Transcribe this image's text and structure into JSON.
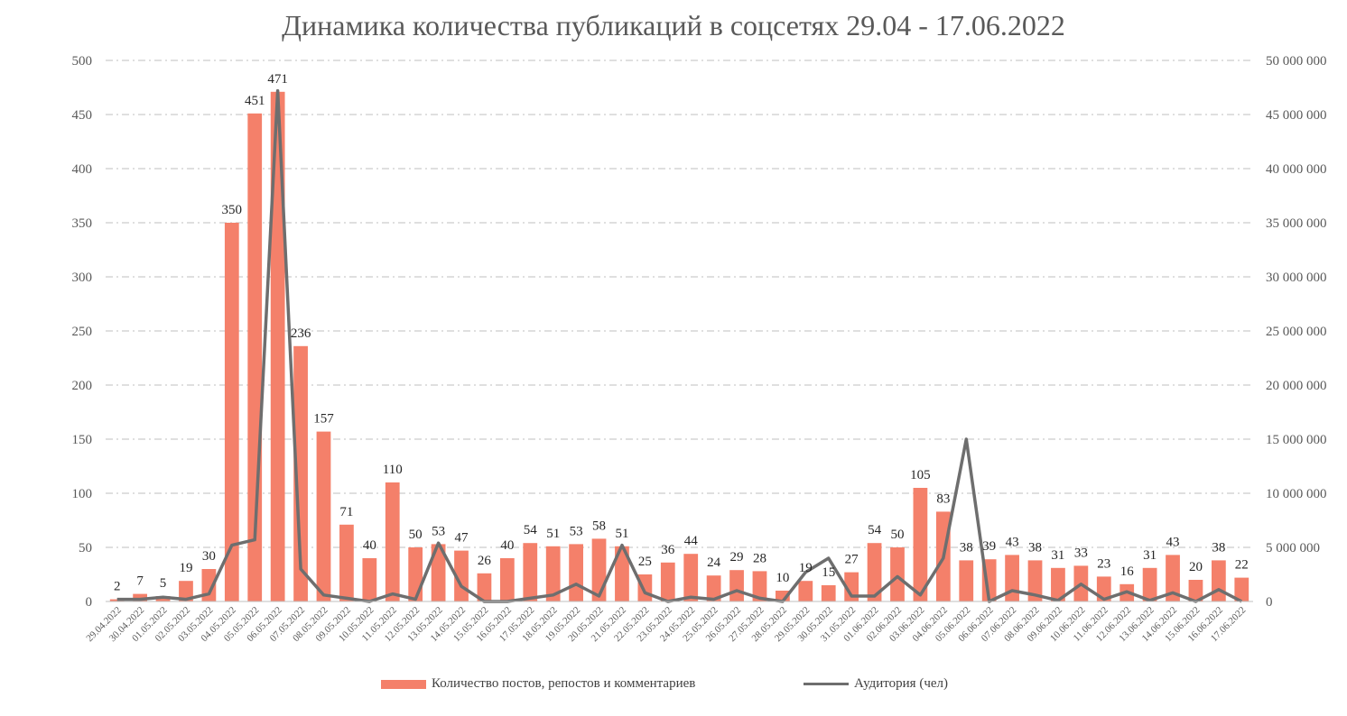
{
  "title": "Динамика количества публикаций в соцсетях 29.04 - 17.06.2022",
  "colors": {
    "bar": "#F4806A",
    "line": "#6E6E6E",
    "grid": "#BFBFBF",
    "text": "#595959"
  },
  "chart_data": {
    "type": "bar",
    "categories": [
      "29.04.2022",
      "30.04.2022",
      "01.05.2022",
      "02.05.2022",
      "03.05.2022",
      "04.05.2022",
      "05.05.2022",
      "06.05.2022",
      "07.05.2022",
      "08.05.2022",
      "09.05.2022",
      "10.05.2022",
      "11.05.2022",
      "12.05.2022",
      "13.05.2022",
      "14.05.2022",
      "15.05.2022",
      "16.05.2022",
      "17.05.2022",
      "18.05.2022",
      "19.05.2022",
      "20.05.2022",
      "21.05.2022",
      "22.05.2022",
      "23.05.2022",
      "24.05.2022",
      "25.05.2022",
      "26.05.2022",
      "27.05.2022",
      "28.05.2022",
      "29.05.2022",
      "30.05.2022",
      "31.05.2022",
      "01.06.2022",
      "02.06.2022",
      "03.06.2022",
      "04.06.2022",
      "05.06.2022",
      "06.06.2022",
      "07.06.2022",
      "08.06.2022",
      "09.06.2022",
      "10.06.2022",
      "11.06.2022",
      "12.06.2022",
      "13.06.2022",
      "14.06.2022",
      "15.06.2022",
      "16.06.2022",
      "17.06.2022"
    ],
    "series": [
      {
        "name": "Количество постов, репостов и комментариев",
        "type": "bar",
        "axis": "left",
        "values": [
          2,
          7,
          5,
          19,
          30,
          350,
          451,
          471,
          236,
          157,
          71,
          40,
          110,
          50,
          53,
          47,
          26,
          40,
          54,
          51,
          53,
          58,
          51,
          25,
          36,
          44,
          24,
          29,
          28,
          10,
          19,
          15,
          27,
          54,
          50,
          105,
          83,
          38,
          39,
          43,
          38,
          31,
          33,
          23,
          16,
          31,
          43,
          20,
          38,
          22
        ]
      },
      {
        "name": "Аудитория (чел)",
        "type": "line",
        "axis": "right",
        "values": [
          200000,
          200000,
          400000,
          200000,
          700000,
          5200000,
          5700000,
          47200000,
          3000000,
          600000,
          300000,
          0,
          700000,
          200000,
          5400000,
          1400000,
          0,
          0,
          300000,
          600000,
          1600000,
          500000,
          5200000,
          800000,
          0,
          400000,
          200000,
          1000000,
          300000,
          0,
          2700000,
          4000000,
          500000,
          500000,
          2300000,
          600000,
          4000000,
          15000000,
          0,
          1000000,
          600000,
          100000,
          1600000,
          200000,
          900000,
          100000,
          800000,
          0,
          1100000,
          0
        ]
      }
    ],
    "y_left": {
      "lim": [
        0,
        500
      ],
      "ticks": [
        "0",
        "50",
        "100",
        "150",
        "200",
        "250",
        "300",
        "350",
        "400",
        "450",
        "500"
      ]
    },
    "y_right": {
      "lim": [
        0,
        50000000
      ],
      "ticks": [
        "0",
        "5 000 000",
        "10 000 000",
        "15 000 000",
        "20 000 000",
        "25 000 000",
        "30 000 000",
        "35 000 000",
        "40 000 000",
        "45 000 000",
        "50 000 000"
      ]
    },
    "grid": true,
    "legend": "bottom"
  },
  "legend": {
    "bar_label": "Количество постов, репостов и комментариев",
    "line_label": "Аудитория (чел)"
  }
}
